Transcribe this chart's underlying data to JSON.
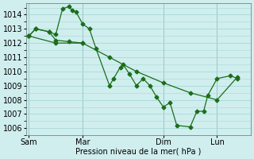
{
  "background_color": "#d0eeee",
  "grid_color": "#a8d8d8",
  "line_color": "#1a6e1a",
  "xlabel": "Pression niveau de la mer( hPa )",
  "ylim": [
    1005.5,
    1014.8
  ],
  "yticks": [
    1006,
    1007,
    1008,
    1009,
    1010,
    1011,
    1012,
    1013,
    1014
  ],
  "xtick_labels": [
    "Sam",
    "Mar",
    "Dim",
    "Lun"
  ],
  "xtick_positions": [
    0,
    4,
    10,
    14
  ],
  "vline_positions": [
    0,
    4,
    10,
    14
  ],
  "xlim": [
    -0.2,
    16.5
  ],
  "series1_x": [
    0,
    0.5,
    1.5,
    2.0,
    2.5,
    3.0,
    3.2,
    3.5,
    4.0,
    4.5,
    5.0,
    6.0,
    6.3,
    6.8,
    7.0,
    7.5,
    8.0,
    8.5,
    9.0,
    9.5,
    10.0,
    10.5,
    11.0,
    12.0,
    12.5,
    13.0,
    13.3,
    14.0,
    15.0,
    15.5
  ],
  "series1_y": [
    1012.5,
    1013.0,
    1012.8,
    1012.6,
    1014.4,
    1014.6,
    1014.3,
    1014.2,
    1013.35,
    1013.0,
    1011.6,
    1009.0,
    1009.5,
    1010.3,
    1010.5,
    1009.8,
    1009.0,
    1009.5,
    1009.0,
    1008.2,
    1007.5,
    1007.8,
    1006.2,
    1006.1,
    1007.2,
    1007.2,
    1008.3,
    1009.5,
    1009.7,
    1009.5
  ],
  "series2_x": [
    0,
    2.0,
    4.0,
    6.0,
    8.0,
    10.0,
    12.0,
    14.0,
    15.5
  ],
  "series2_y": [
    1012.5,
    1012.0,
    1012.0,
    1011.0,
    1010.0,
    1009.2,
    1008.5,
    1008.0,
    1009.6
  ],
  "series3_x": [
    0,
    0.5,
    1.5,
    2.0,
    3.0,
    4.0
  ],
  "series3_y": [
    1012.5,
    1013.0,
    1012.8,
    1012.2,
    1012.1,
    1012.0
  ]
}
